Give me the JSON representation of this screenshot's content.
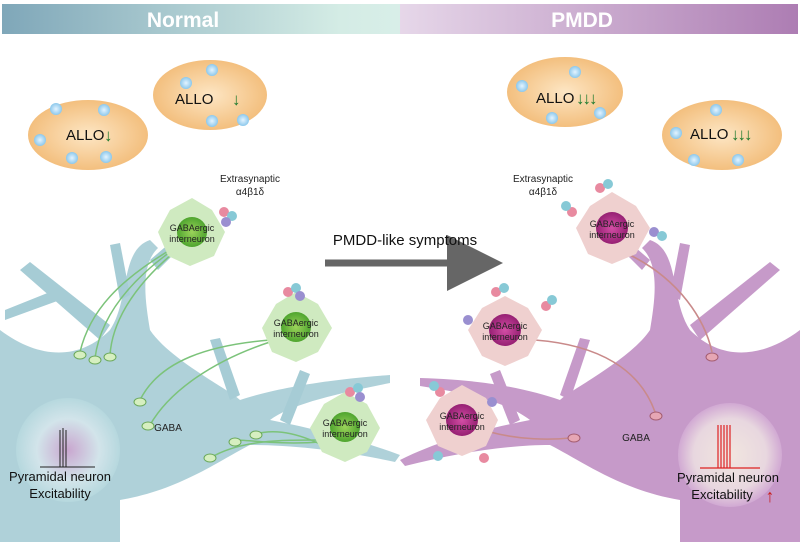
{
  "header": {
    "left_title": "Normal",
    "right_title": "PMDD"
  },
  "colors": {
    "normal_left": "#7fa7b9",
    "normal_right": "#d4ece5",
    "pmdd_left": "#e6d7e9",
    "pmdd_right": "#ad7db3",
    "allo_vesicle": "#f6c990",
    "arrow_down": "#1e7a2e",
    "arrow_up": "#c81e1e",
    "center_arrow": "#666666"
  },
  "normal": {
    "allo_vesicles": [
      {
        "label": "ALLO",
        "arrows": "↓"
      },
      {
        "label": "ALLO",
        "arrows": "↓"
      }
    ],
    "receptor_label": "Extrasynaptic\nα4β1δ",
    "receptor_line1": "Extrasynaptic",
    "receptor_line2": "α4β1δ",
    "interneuron_line1": "GABAergic",
    "interneuron_line2": "interneuron",
    "gaba_label": "GABA",
    "pyramidal_line1": "Pyramidal neuron",
    "pyramidal_line2": "Excitability"
  },
  "transition": {
    "label": "PMDD-like symptoms"
  },
  "pmdd": {
    "allo_vesicles": [
      {
        "label": "ALLO",
        "arrows": "↓↓↓"
      },
      {
        "label": "ALLO",
        "arrows": "↓↓↓"
      }
    ],
    "receptor_line1": "Extrasynaptic",
    "receptor_line2": "α4β1δ",
    "interneuron_line1": "GABAergic",
    "interneuron_line2": "interneuron",
    "gaba_label": "GABA",
    "pyramidal_line1": "Pyramidal neuron",
    "pyramidal_line2": "Excitability",
    "excitability_arrow": "↑"
  }
}
